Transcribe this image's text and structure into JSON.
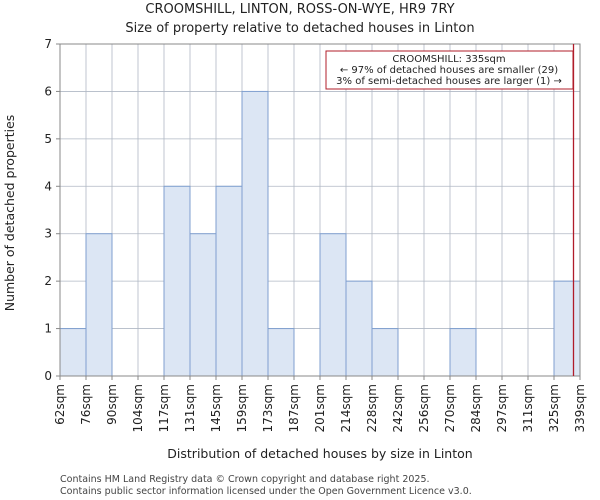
{
  "chart_data": {
    "type": "bar",
    "title": "CROOMSHILL, LINTON, ROSS-ON-WYE, HR9 7RY",
    "subtitle": "Size of property relative to detached houses in Linton",
    "xlabel": "Distribution of detached houses by size in Linton",
    "ylabel": "Number of detached properties",
    "ylim": [
      0,
      7
    ],
    "yticks": [
      "0",
      "1",
      "2",
      "3",
      "4",
      "5",
      "6",
      "7"
    ],
    "grid": true,
    "bin_edges": [
      "62sqm",
      "76sqm",
      "90sqm",
      "104sqm",
      "117sqm",
      "131sqm",
      "145sqm",
      "159sqm",
      "173sqm",
      "187sqm",
      "201sqm",
      "214sqm",
      "228sqm",
      "242sqm",
      "256sqm",
      "270sqm",
      "284sqm",
      "297sqm",
      "311sqm",
      "325sqm",
      "339sqm"
    ],
    "values": [
      1,
      3,
      0,
      0,
      4,
      3,
      4,
      6,
      1,
      0,
      3,
      2,
      1,
      0,
      0,
      1,
      0,
      0,
      0,
      2
    ],
    "marker_position": 19.75,
    "annotation": {
      "line1": "CROOMSHILL: 335sqm",
      "line2": "← 97% of detached houses are smaller (29)",
      "line3": "3% of semi-detached houses are larger (1) →"
    },
    "colors": {
      "bar_fill": "#dce6f4",
      "bar_stroke": "#7f9fcf",
      "marker": "#b01c2a",
      "grid": "#b0b8c4",
      "axis": "#888888"
    }
  },
  "footer": {
    "line1": "Contains HM Land Registry data © Crown copyright and database right 2025.",
    "line2": "Contains public sector information licensed under the Open Government Licence v3.0."
  }
}
